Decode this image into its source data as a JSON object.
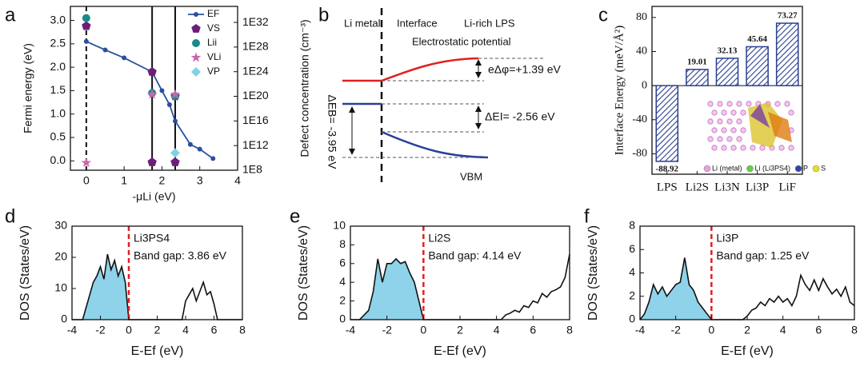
{
  "panel_labels": [
    "a",
    "b",
    "c",
    "d",
    "e",
    "f"
  ],
  "diagram": {
    "li_metal": "Li metal",
    "interface": "Interface",
    "lps": "Li-rich LPS",
    "potential": "Electrostatic potential",
    "dphi": "eΔφ=+1.39 eV",
    "dEI": "ΔEI= -2.56 eV",
    "dEB": "ΔEB= -3.95 eV",
    "vbm": "VBM"
  },
  "chart_data": [
    {
      "type": "line",
      "xlabel": "-μLi (eV)",
      "ylabel": "Fermi energy (eV)",
      "y2label": "Defect concentration (cm⁻³)",
      "xlim": [
        -0.42,
        4
      ],
      "xticks": [
        0,
        1,
        2,
        3,
        4
      ],
      "ylim": [
        -0.2,
        3.3
      ],
      "yticks": [
        {
          "value": 0,
          "label": "0.0"
        },
        0.5,
        {
          "value": 1,
          "label": "1.0"
        },
        1.5,
        {
          "value": 2,
          "label": "2.0"
        },
        2.5,
        {
          "value": 3,
          "label": "3.0"
        }
      ],
      "y2lim": [
        100000000.0,
        4e+34
      ],
      "y2log": true,
      "y2ticks": [
        {
          "value": 100000000.0,
          "label": "1E8"
        },
        {
          "value": 1000000000000.0,
          "label": "1E12"
        },
        {
          "value": 1e+16,
          "label": "1E16"
        },
        {
          "value": 1e+20,
          "label": "1E20"
        },
        {
          "value": 1e+24,
          "label": "1E24"
        },
        {
          "value": 1e+28,
          "label": "1E28"
        },
        {
          "value": 1e+32,
          "label": "1E32"
        }
      ],
      "vlines": [
        0,
        1.74,
        2.35
      ],
      "vline_styles": [
        "dashed",
        "solid",
        "solid"
      ],
      "legend": "top-right",
      "series": [
        {
          "name": "EF",
          "type": "line",
          "marker": "circle",
          "color": "#2a4fa0",
          "x": [
            0,
            0.5,
            1.0,
            1.74,
            2.0,
            2.2,
            2.35,
            2.75,
            3.0,
            3.35
          ],
          "values": [
            2.55,
            2.37,
            2.2,
            1.9,
            1.5,
            1.2,
            0.85,
            0.35,
            0.25,
            0.05
          ]
        },
        {
          "name": "VS",
          "type": "scatter",
          "marker": "pentagon",
          "color": "#6b1f7a",
          "x": [
            0,
            1.74,
            2.35,
            1.74,
            2.35
          ],
          "values": [
            2.88,
            1.9,
            1.38,
            -0.03,
            -0.03
          ]
        },
        {
          "name": "Lii",
          "type": "scatter",
          "marker": "circle",
          "color": "#1a8a8a",
          "x": [
            0,
            1.74,
            2.35
          ],
          "values": [
            3.05,
            1.45,
            1.38
          ]
        },
        {
          "name": "VLi",
          "type": "scatter",
          "marker": "star",
          "color": "#cc66aa",
          "x": [
            0,
            1.74,
            2.35
          ],
          "values": [
            -0.04,
            1.42,
            1.42
          ]
        },
        {
          "name": "VP",
          "type": "scatter",
          "marker": "diamond",
          "color": "#7fd3e6",
          "x": [
            2.35
          ],
          "values": [
            0.17
          ]
        }
      ]
    },
    {
      "type": "bar",
      "ylabel": "Interface Energy (meV/Å²)",
      "categories": [
        "LPS",
        "Li2S",
        "Li3N",
        "Li3P",
        "LiF"
      ],
      "values": [
        -88.92,
        19.01,
        32.13,
        45.64,
        73.27
      ],
      "color": "#2b3f8f",
      "hatch": true,
      "ylim": [
        -104,
        93
      ],
      "yticks": [
        -80,
        -40,
        0,
        40,
        80
      ],
      "inset_legend": [
        {
          "name": "Li (metal)",
          "color": "#e8a0e0"
        },
        {
          "name": "Li (Li3PS4)",
          "color": "#66cc44"
        },
        {
          "name": "P",
          "color": "#3344aa"
        },
        {
          "name": "S",
          "color": "#e8e020"
        }
      ]
    },
    {
      "type": "dos",
      "xlabel": "E-Ef (eV)",
      "ylabel": "DOS (States/eV)",
      "annotations": [
        "Li3PS4",
        "Band gap: 3.86 eV"
      ],
      "xlim": [
        -4,
        8
      ],
      "xticks": [
        -4,
        -2,
        0,
        2,
        4,
        6,
        8
      ],
      "ylim": [
        0,
        30
      ],
      "yticks": [
        0,
        10,
        20,
        30
      ],
      "vlines": [
        0
      ],
      "vline_color": "#e02020",
      "color": "#111111",
      "fill": "#8fd3ea",
      "x": [
        -4,
        -3.75,
        -3.5,
        -3.25,
        -3,
        -2.75,
        -2.5,
        -2.25,
        -2,
        -1.75,
        -1.5,
        -1.25,
        -1,
        -0.75,
        -0.5,
        -0.25,
        0,
        0.25,
        0.5,
        0.75,
        1,
        1.25,
        1.5,
        1.75,
        2,
        2.25,
        2.5,
        2.75,
        3,
        3.25,
        3.5,
        3.75,
        4,
        4.25,
        4.5,
        4.75,
        5,
        5.25,
        5.5,
        5.75,
        6,
        6.25,
        6.5,
        6.75,
        7,
        7.25,
        7.5,
        7.75,
        8
      ],
      "values": [
        0,
        0,
        0,
        0,
        4,
        8,
        12,
        14,
        17,
        13,
        21,
        16,
        19,
        14,
        17,
        12,
        0,
        0,
        0,
        0,
        0,
        0,
        0,
        0,
        0,
        0,
        0,
        0,
        0,
        0,
        0,
        0,
        6,
        8,
        10,
        6,
        9,
        12,
        8,
        9,
        5,
        0,
        0,
        0,
        0,
        0,
        0,
        0,
        0
      ]
    },
    {
      "type": "dos",
      "xlabel": "E-Ef (eV)",
      "ylabel": "DOS (States/eV)",
      "annotations": [
        "Li2S",
        "Band gap: 4.14 eV"
      ],
      "xlim": [
        -4,
        8
      ],
      "xticks": [
        -4,
        -2,
        0,
        2,
        4,
        6,
        8
      ],
      "ylim": [
        0,
        10
      ],
      "yticks": [
        0,
        2,
        4,
        6,
        8,
        10
      ],
      "vlines": [
        0
      ],
      "vline_color": "#e02020",
      "color": "#111111",
      "fill": "#8fd3ea",
      "x": [
        -4,
        -3.75,
        -3.5,
        -3.25,
        -3,
        -2.75,
        -2.5,
        -2.25,
        -2,
        -1.75,
        -1.5,
        -1.25,
        -1,
        -0.75,
        -0.5,
        -0.25,
        0,
        0.25,
        0.5,
        0.75,
        1,
        1.25,
        1.5,
        1.75,
        2,
        2.25,
        2.5,
        2.75,
        3,
        3.25,
        3.5,
        3.75,
        4,
        4.25,
        4.5,
        4.75,
        5,
        5.25,
        5.5,
        5.75,
        6,
        6.25,
        6.5,
        6.75,
        7,
        7.25,
        7.5,
        7.75,
        8
      ],
      "values": [
        0,
        0,
        0,
        0.5,
        1,
        3,
        6.5,
        4,
        6,
        6,
        6.5,
        6,
        6.2,
        5,
        4,
        2,
        0,
        0,
        0,
        0,
        0,
        0,
        0,
        0,
        0,
        0,
        0,
        0,
        0,
        0,
        0,
        0,
        0,
        0,
        0.5,
        0.7,
        1,
        0.8,
        1.5,
        1.3,
        2,
        1.8,
        2.8,
        2.4,
        3,
        3.2,
        3.5,
        4.5,
        7
      ]
    },
    {
      "type": "dos",
      "xlabel": "E-Ef (eV)",
      "ylabel": "DOS (States/eV)",
      "annotations": [
        "Li3P",
        "Band gap: 1.25 eV"
      ],
      "xlim": [
        -4,
        8
      ],
      "xticks": [
        -4,
        -2,
        0,
        2,
        4,
        6,
        8
      ],
      "ylim": [
        0,
        8
      ],
      "yticks": [
        0,
        2,
        4,
        6,
        8
      ],
      "vlines": [
        0
      ],
      "vline_color": "#e02020",
      "color": "#111111",
      "fill": "#8fd3ea",
      "x": [
        -4,
        -3.75,
        -3.5,
        -3.25,
        -3,
        -2.75,
        -2.5,
        -2.25,
        -2,
        -1.75,
        -1.5,
        -1.25,
        -1,
        -0.75,
        -0.5,
        -0.25,
        0,
        0.25,
        0.5,
        0.75,
        1,
        1.25,
        1.5,
        1.75,
        2,
        2.25,
        2.5,
        2.75,
        3,
        3.25,
        3.5,
        3.75,
        4,
        4.25,
        4.5,
        4.75,
        5,
        5.25,
        5.5,
        5.75,
        6,
        6.25,
        6.5,
        6.75,
        7,
        7.25,
        7.5,
        7.75,
        8
      ],
      "values": [
        0,
        0.5,
        1.5,
        3,
        2.2,
        2.8,
        2,
        2.5,
        3,
        3.2,
        5.3,
        3,
        2.5,
        1.5,
        1,
        0.5,
        0,
        0,
        0,
        0,
        0,
        0,
        0,
        0,
        0.3,
        0.8,
        1,
        1.5,
        1.2,
        1.8,
        1.5,
        2,
        1.5,
        1.8,
        1.2,
        2,
        3.8,
        3,
        2.5,
        3.4,
        2.5,
        3.5,
        2.8,
        2.2,
        2.6,
        2,
        2.8,
        1.5,
        1.2
      ]
    }
  ]
}
